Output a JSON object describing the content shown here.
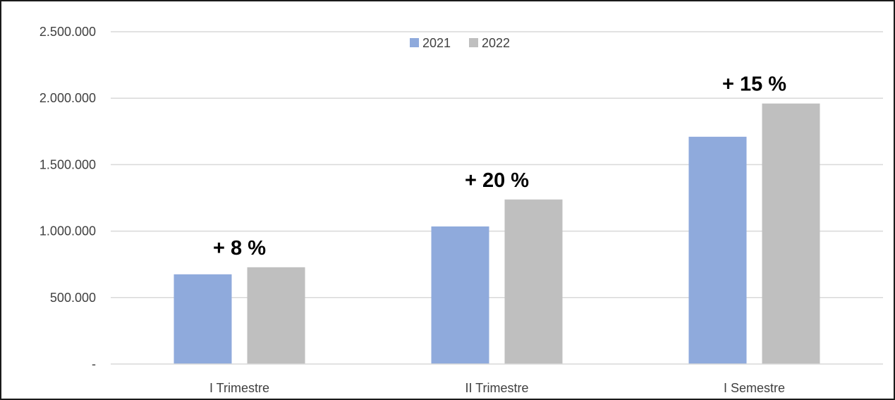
{
  "chart_data": {
    "type": "bar",
    "title": "",
    "xlabel": "",
    "ylabel": "",
    "categories": [
      "I Trimestre",
      "II Trimestre",
      "I Semestre"
    ],
    "series": [
      {
        "name": "2021",
        "values": [
          675000,
          1035000,
          1710000
        ],
        "color": "#8faadc"
      },
      {
        "name": "2022",
        "values": [
          728000,
          1238000,
          1960000
        ],
        "color": "#bfbfbf"
      }
    ],
    "ylim": [
      0,
      2500000
    ],
    "yticks": [
      {
        "value": 0,
        "label": "-"
      },
      {
        "value": 500000,
        "label": "500.000"
      },
      {
        "value": 1000000,
        "label": "1.000.000"
      },
      {
        "value": 1500000,
        "label": "1.500.000"
      },
      {
        "value": 2000000,
        "label": "2.000.000"
      },
      {
        "value": 2500000,
        "label": "2.500.000"
      }
    ],
    "annotations": [
      "+ 8 %",
      "+ 20 %",
      "+ 15 %"
    ],
    "grid": true,
    "gridColor": "#d9d9d9",
    "legend": "top-center"
  }
}
